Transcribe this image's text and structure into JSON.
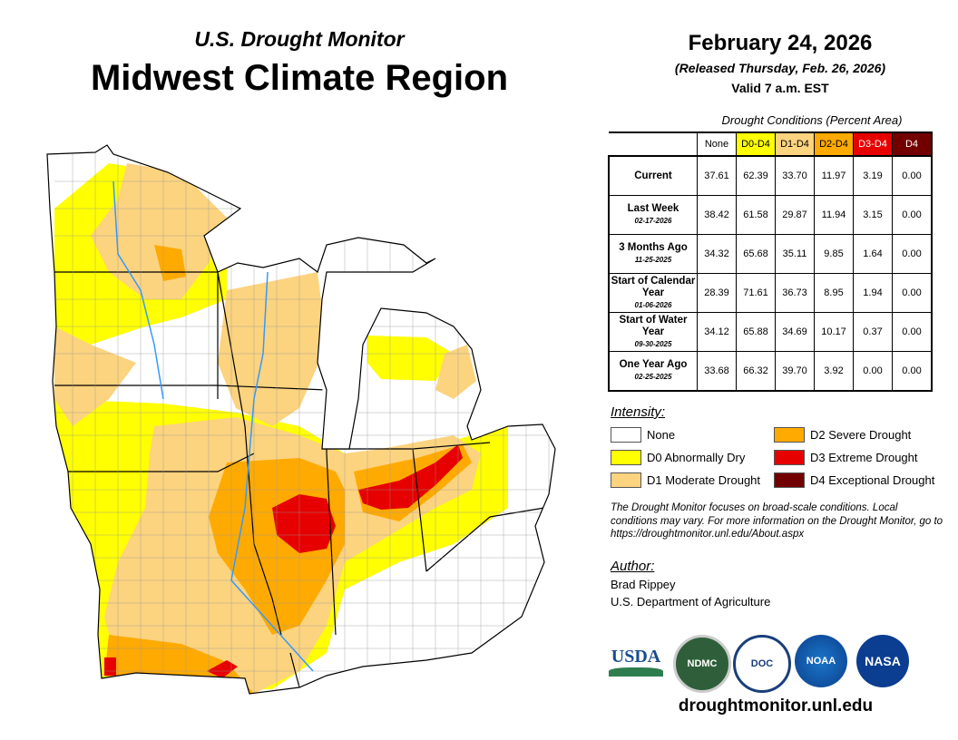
{
  "header": {
    "subtitle": "U.S. Drought Monitor",
    "title": "Midwest Climate Region"
  },
  "date_block": {
    "date": "February 24, 2026",
    "released": "(Released Thursday, Feb. 26, 2026)",
    "valid": "Valid 7 a.m. EST"
  },
  "table": {
    "caption": "Drought Conditions (Percent Area)",
    "columns": [
      {
        "label": "None",
        "color": "#ffffff",
        "text": "#000000"
      },
      {
        "label": "D0-D4",
        "color": "#ffff00",
        "text": "#000000"
      },
      {
        "label": "D1-D4",
        "color": "#fcd37f",
        "text": "#000000"
      },
      {
        "label": "D2-D4",
        "color": "#ffaa00",
        "text": "#000000"
      },
      {
        "label": "D3-D4",
        "color": "#e60000",
        "text": "#ffffff"
      },
      {
        "label": "D4",
        "color": "#730000",
        "text": "#ffffff"
      }
    ],
    "rows": [
      {
        "label": "Current",
        "date": "",
        "values": [
          "37.61",
          "62.39",
          "33.70",
          "11.97",
          "3.19",
          "0.00"
        ]
      },
      {
        "label": "Last Week",
        "date": "02-17-2026",
        "values": [
          "38.42",
          "61.58",
          "29.87",
          "11.94",
          "3.15",
          "0.00"
        ]
      },
      {
        "label": "3 Months Ago",
        "date": "11-25-2025",
        "values": [
          "34.32",
          "65.68",
          "35.11",
          "9.85",
          "1.64",
          "0.00"
        ]
      },
      {
        "label": "Start of Calendar Year",
        "date": "01-06-2026",
        "values": [
          "28.39",
          "71.61",
          "36.73",
          "8.95",
          "1.94",
          "0.00"
        ]
      },
      {
        "label": "Start of Water Year",
        "date": "09-30-2025",
        "values": [
          "34.12",
          "65.88",
          "34.69",
          "10.17",
          "0.37",
          "0.00"
        ]
      },
      {
        "label": "One Year Ago",
        "date": "02-25-2025",
        "values": [
          "33.68",
          "66.32",
          "39.70",
          "3.92",
          "0.00",
          "0.00"
        ]
      }
    ]
  },
  "legend": {
    "title": "Intensity:",
    "items": [
      {
        "label": "None",
        "color": "#ffffff"
      },
      {
        "label": "D0 Abnormally Dry",
        "color": "#ffff00"
      },
      {
        "label": "D1 Moderate Drought",
        "color": "#fcd37f"
      },
      {
        "label": "D2 Severe Drought",
        "color": "#ffaa00"
      },
      {
        "label": "D3 Extreme Drought",
        "color": "#e60000"
      },
      {
        "label": "D4 Exceptional Drought",
        "color": "#730000"
      }
    ]
  },
  "note": "The Drought Monitor focuses on broad-scale conditions. Local conditions may vary. For more information on the Drought Monitor, go to https://droughtmonitor.unl.edu/About.aspx",
  "author": {
    "title": "Author:",
    "name": "Brad Rippey",
    "org": "U.S. Department of Agriculture"
  },
  "logos": {
    "usda": "USDA",
    "ndmc": "NDMC",
    "doc": "DOC",
    "noaa": "NOAA",
    "nasa": "NASA"
  },
  "url": "droughtmonitor.unl.edu"
}
